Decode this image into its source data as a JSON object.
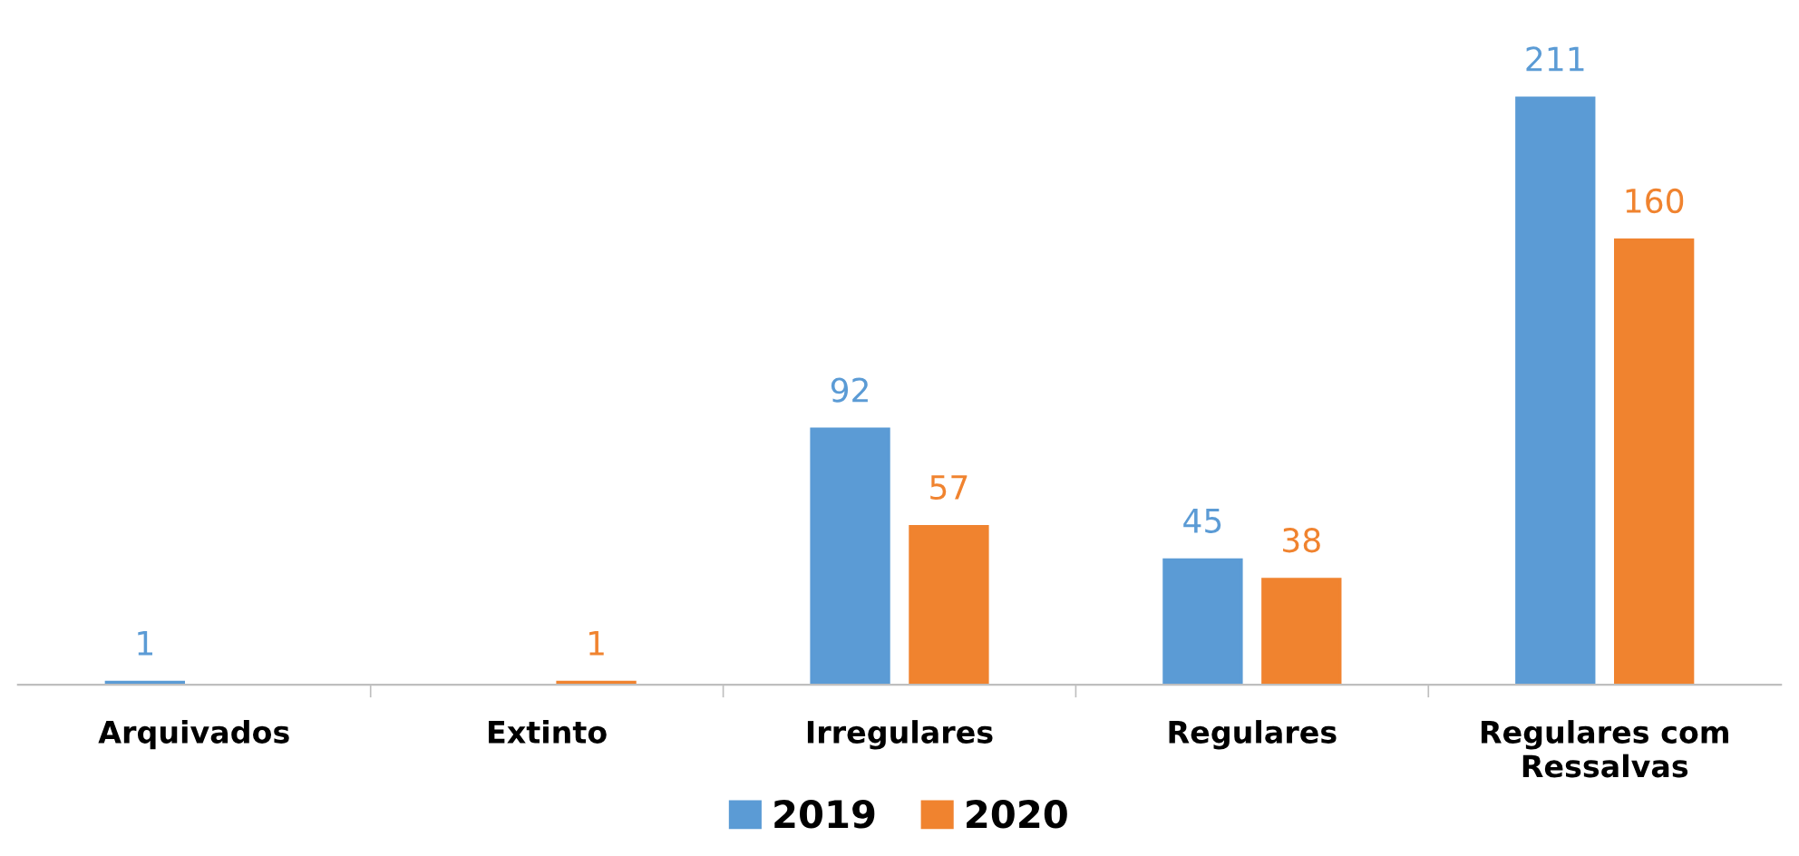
{
  "chart_data": {
    "type": "bar",
    "categories": [
      "Arquivados",
      "Extinto",
      "Irregulares",
      "Regulares",
      "Regulares com Ressalvas"
    ],
    "series": [
      {
        "name": "2019",
        "color": "#5b9bd5",
        "values": [
          1,
          null,
          92,
          45,
          211
        ]
      },
      {
        "name": "2020",
        "color": "#f0832f",
        "values": [
          null,
          1,
          57,
          38,
          160
        ]
      }
    ],
    "data_labels": true,
    "legend": "bottom",
    "grid": false
  }
}
